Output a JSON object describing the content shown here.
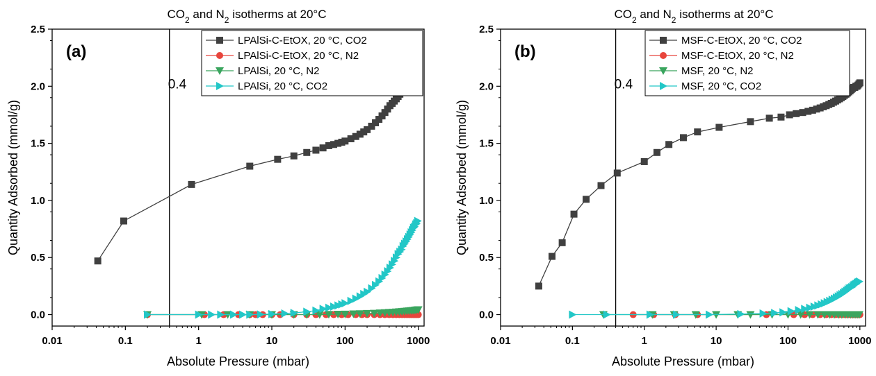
{
  "chart_data": [
    {
      "type": "scatter",
      "panel_label": "(a)",
      "title": "CO<sub>2</sub> and N<sub>2</sub> isotherms at 20°C",
      "title_parts": [
        "CO",
        "2",
        " and N",
        "2",
        " isotherms at 20°C"
      ],
      "xlabel": "Absolute Pressure (mbar)",
      "ylabel": "Quantity Adsorbed (mmol/g)",
      "xscale": "log",
      "xlim": [
        0.01,
        1200
      ],
      "ylim": [
        -0.1,
        2.5
      ],
      "xticks": [
        0.01,
        0.1,
        1,
        10,
        100,
        1000
      ],
      "xtick_labels": [
        "0.01",
        "0.1",
        "1",
        "10",
        "100",
        "1000"
      ],
      "yticks": [
        0.0,
        0.5,
        1.0,
        1.5,
        2.0,
        2.5
      ],
      "ytick_labels": [
        "0.0",
        "0.5",
        "1.0",
        "1.5",
        "2.0",
        "2.5"
      ],
      "grid": false,
      "legend_position": "top-right",
      "vline": {
        "x": 0.4,
        "label": "0.4"
      },
      "colors": {
        "s1": "#404040",
        "s2": "#e8453c",
        "s3": "#3aa55e",
        "s4": "#22c7c7"
      },
      "series": [
        {
          "name": "LPAlSi-C-EtOX, 20 °C, CO2",
          "marker": "square",
          "color": "#404040",
          "x": [
            0.042,
            0.095,
            0.8,
            5,
            12,
            20,
            30,
            40,
            50,
            60,
            70,
            80,
            90,
            100,
            120,
            140,
            160,
            180,
            200,
            230,
            260,
            290,
            320,
            350,
            380,
            410,
            440,
            470,
            500,
            530,
            560,
            590,
            620,
            650,
            680,
            710,
            740,
            770,
            800,
            830,
            860,
            890,
            920,
            950,
            980
          ],
          "y": [
            0.47,
            0.82,
            1.14,
            1.3,
            1.36,
            1.39,
            1.42,
            1.44,
            1.46,
            1.48,
            1.49,
            1.5,
            1.51,
            1.52,
            1.54,
            1.56,
            1.58,
            1.6,
            1.62,
            1.65,
            1.68,
            1.71,
            1.74,
            1.77,
            1.8,
            1.83,
            1.85,
            1.87,
            1.89,
            1.91,
            1.93,
            1.95,
            1.97,
            1.98,
            2.0,
            2.01,
            2.03,
            2.04,
            2.05,
            2.06,
            2.07,
            2.08,
            2.09,
            2.1,
            2.12
          ]
        },
        {
          "name": "LPAlSi-C-EtOX, 20 °C, N2",
          "marker": "circle",
          "color": "#e8453c",
          "x": [
            0.2,
            1.2,
            2.2,
            3.5,
            5,
            6,
            7.5,
            10,
            13,
            20,
            30,
            40,
            55,
            70,
            90,
            110,
            140,
            170,
            200,
            250,
            300,
            350,
            400,
            450,
            500,
            550,
            600,
            650,
            700,
            750,
            800,
            850,
            900,
            950,
            1000
          ],
          "y": [
            0.0,
            0.0,
            0.0,
            0.0,
            0.0,
            0.0,
            0.0,
            0.0,
            0.0,
            0.0,
            0.0,
            0.0,
            0.0,
            0.0,
            0.0,
            0.0,
            0.0,
            0.0,
            0.0,
            0.0,
            0.0,
            0.0,
            0.0,
            0.0,
            0.0,
            0.0,
            0.0,
            0.0,
            0.0,
            0.0,
            0.0,
            0.0,
            0.0,
            0.0,
            0.0
          ]
        },
        {
          "name": "LPAlSi, 20 °C, N2",
          "marker": "triangle-down",
          "color": "#3aa55e",
          "x": [
            0.2,
            1.1,
            2.5,
            5,
            10,
            20,
            30,
            45,
            60,
            80,
            100,
            130,
            160,
            200,
            250,
            300,
            350,
            400,
            450,
            500,
            550,
            600,
            650,
            700,
            750,
            800,
            850,
            900,
            950,
            1000
          ],
          "y": [
            0.0,
            0.0,
            0.0,
            0.0,
            0.0,
            0.0,
            0.0,
            0.0,
            0.002,
            0.003,
            0.004,
            0.006,
            0.008,
            0.01,
            0.012,
            0.015,
            0.017,
            0.019,
            0.021,
            0.023,
            0.025,
            0.027,
            0.029,
            0.031,
            0.033,
            0.035,
            0.037,
            0.039,
            0.041,
            0.043
          ]
        },
        {
          "name": "LPAlSi, 20 °C, CO2",
          "marker": "triangle-right",
          "color": "#22c7c7",
          "x": [
            0.2,
            1,
            1.5,
            2,
            3,
            4,
            5,
            7,
            10,
            15,
            20,
            30,
            40,
            50,
            60,
            70,
            80,
            90,
            100,
            120,
            140,
            160,
            180,
            200,
            230,
            260,
            290,
            320,
            350,
            380,
            410,
            440,
            470,
            500,
            530,
            560,
            590,
            620,
            650,
            680,
            710,
            740,
            770,
            800,
            830,
            860,
            890,
            920,
            950,
            980
          ],
          "y": [
            0.0,
            0.0,
            0.0,
            0.0,
            0.0,
            0.0,
            0.0,
            0.002,
            0.005,
            0.01,
            0.015,
            0.025,
            0.035,
            0.05,
            0.06,
            0.07,
            0.08,
            0.09,
            0.1,
            0.12,
            0.14,
            0.16,
            0.18,
            0.2,
            0.23,
            0.26,
            0.29,
            0.32,
            0.35,
            0.38,
            0.41,
            0.44,
            0.47,
            0.5,
            0.53,
            0.55,
            0.57,
            0.6,
            0.62,
            0.64,
            0.66,
            0.68,
            0.7,
            0.72,
            0.74,
            0.76,
            0.77,
            0.79,
            0.8,
            0.82
          ]
        }
      ]
    },
    {
      "type": "scatter",
      "panel_label": "(b)",
      "title": "CO<sub>2</sub> and N<sub>2</sub> isotherms at 20°C",
      "title_parts": [
        "CO",
        "2",
        " and N",
        "2",
        " isotherms at 20°C"
      ],
      "xlabel": "Absolute Pressure (mbar)",
      "ylabel": "Quantity Adsorbed (mmol/g)",
      "xscale": "log",
      "xlim": [
        0.01,
        1200
      ],
      "ylim": [
        -0.1,
        2.5
      ],
      "xticks": [
        0.01,
        0.1,
        1,
        10,
        100,
        1000
      ],
      "xtick_labels": [
        "0.01",
        "0.1",
        "1",
        "10",
        "100",
        "1000"
      ],
      "yticks": [
        0.0,
        0.5,
        1.0,
        1.5,
        2.0,
        2.5
      ],
      "ytick_labels": [
        "0.0",
        "0.5",
        "1.0",
        "1.5",
        "2.0",
        "2.5"
      ],
      "grid": false,
      "legend_position": "top-right",
      "vline": {
        "x": 0.4,
        "label": "0.4"
      },
      "colors": {
        "s1": "#404040",
        "s2": "#e8453c",
        "s3": "#3aa55e",
        "s4": "#22c7c7"
      },
      "series": [
        {
          "name": "MSF-C-EtOX, 20 °C, CO2",
          "marker": "square",
          "color": "#404040",
          "x": [
            0.034,
            0.052,
            0.072,
            0.105,
            0.155,
            0.25,
            0.42,
            1.0,
            1.5,
            2.2,
            3.5,
            5.5,
            11,
            30,
            55,
            80,
            105,
            130,
            160,
            190,
            220,
            250,
            280,
            310,
            340,
            370,
            400,
            430,
            460,
            490,
            520,
            550,
            580,
            610,
            640,
            670,
            700,
            730,
            760,
            790,
            820,
            850,
            880,
            910,
            940,
            970,
            1000
          ],
          "y": [
            0.25,
            0.51,
            0.63,
            0.88,
            1.01,
            1.13,
            1.24,
            1.34,
            1.42,
            1.49,
            1.55,
            1.6,
            1.64,
            1.69,
            1.72,
            1.73,
            1.75,
            1.76,
            1.77,
            1.78,
            1.79,
            1.8,
            1.81,
            1.82,
            1.83,
            1.84,
            1.85,
            1.86,
            1.87,
            1.88,
            1.89,
            1.9,
            1.91,
            1.92,
            1.93,
            1.94,
            1.95,
            1.96,
            1.97,
            1.98,
            1.99,
            1.99,
            2.0,
            2.0,
            2.01,
            2.02,
            2.03
          ]
        },
        {
          "name": "MSF-C-EtOX, 20 °C, N2",
          "marker": "circle",
          "color": "#e8453c",
          "x": [
            0.7,
            1.35,
            2.7,
            5.5,
            50,
            120,
            170,
            220,
            280,
            340,
            400,
            460,
            520,
            580,
            640,
            700,
            760,
            820,
            880,
            940,
            1000
          ],
          "y": [
            0.0,
            0.0,
            0.0,
            0.0,
            0.0,
            0.0,
            0.0,
            0.0,
            0.0,
            0.0,
            0.0,
            0.0,
            0.0,
            0.0,
            0.0,
            0.0,
            0.0,
            0.0,
            0.0,
            0.0,
            0.0
          ]
        },
        {
          "name": "MSF, 20 °C, N2",
          "marker": "triangle-down",
          "color": "#3aa55e",
          "x": [
            0.27,
            1.3,
            2.6,
            5.2,
            10,
            20,
            30,
            60,
            100,
            150,
            200,
            260,
            320,
            380,
            440,
            500,
            560,
            620,
            680,
            740,
            800,
            860,
            920,
            980
          ],
          "y": [
            0.0,
            0.0,
            0.0,
            0.0,
            0.0,
            0.0,
            0.0,
            0.0,
            0.0,
            0.0,
            0.0,
            0.0,
            0.0,
            0.0,
            0.0,
            0.0,
            0.0,
            0.0,
            0.0,
            0.0,
            0.0,
            0.0,
            0.0,
            0.0
          ]
        },
        {
          "name": "MSF, 20 °C, CO2",
          "marker": "triangle-right",
          "color": "#22c7c7",
          "x": [
            0.1,
            0.3,
            1.2,
            2.8,
            8,
            22,
            45,
            65,
            85,
            110,
            140,
            170,
            200,
            230,
            260,
            290,
            320,
            350,
            380,
            410,
            440,
            470,
            500,
            530,
            560,
            590,
            620,
            650,
            680,
            710,
            740,
            770,
            800,
            830,
            860,
            890,
            920,
            950,
            980
          ],
          "y": [
            0.0,
            0.0,
            0.0,
            0.0,
            0.0,
            0.005,
            0.01,
            0.015,
            0.02,
            0.03,
            0.04,
            0.05,
            0.06,
            0.07,
            0.08,
            0.09,
            0.1,
            0.11,
            0.12,
            0.13,
            0.14,
            0.15,
            0.16,
            0.17,
            0.18,
            0.19,
            0.2,
            0.21,
            0.22,
            0.23,
            0.235,
            0.24,
            0.25,
            0.26,
            0.265,
            0.27,
            0.28,
            0.285,
            0.29
          ]
        }
      ]
    }
  ]
}
